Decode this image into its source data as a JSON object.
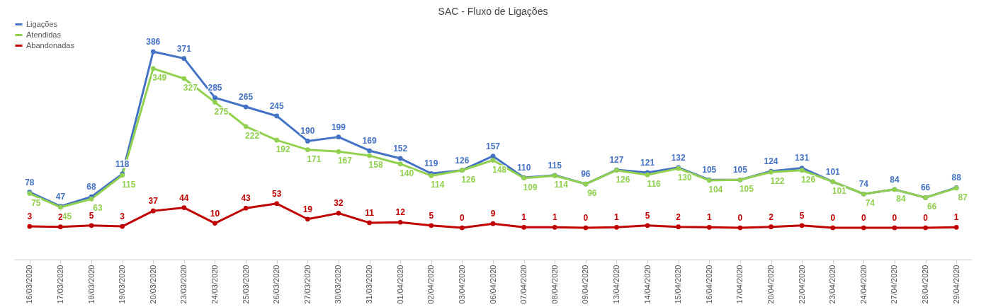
{
  "chart_data": {
    "type": "line",
    "title": "SAC - Fluxo de Ligações",
    "categories": [
      "16/03/2020",
      "17/03/2020",
      "18/03/2020",
      "19/03/2020",
      "20/03/2020",
      "23/03/2020",
      "24/03/2020",
      "25/03/2020",
      "26/03/2020",
      "27/03/2020",
      "30/03/2020",
      "31/03/2020",
      "01/04/2020",
      "02/04/2020",
      "03/04/2020",
      "06/04/2020",
      "07/04/2020",
      "08/04/2020",
      "09/04/2020",
      "13/04/2020",
      "14/04/2020",
      "15/04/2020",
      "16/04/2020",
      "17/04/2020",
      "20/04/2020",
      "22/04/2020",
      "23/04/2020",
      "24/04/2020",
      "27/04/2020",
      "28/04/2020",
      "29/04/2020"
    ],
    "series": [
      {
        "name": "Ligações",
        "color": "#4472c4",
        "values": [
          78,
          47,
          68,
          118,
          386,
          371,
          285,
          265,
          245,
          190,
          199,
          169,
          152,
          119,
          126,
          157,
          110,
          115,
          96,
          127,
          121,
          132,
          105,
          105,
          124,
          131,
          101,
          74,
          84,
          66,
          88
        ]
      },
      {
        "name": "Atendidas",
        "color": "#92d050",
        "values": [
          75,
          45,
          63,
          115,
          349,
          327,
          275,
          222,
          192,
          171,
          167,
          158,
          140,
          114,
          126,
          148,
          109,
          114,
          96,
          126,
          116,
          130,
          104,
          105,
          122,
          126,
          101,
          74,
          84,
          66,
          87
        ]
      },
      {
        "name": "Abandonadas",
        "color": "#c00000",
        "values": [
          3,
          2,
          5,
          3,
          37,
          44,
          10,
          43,
          53,
          19,
          32,
          11,
          12,
          5,
          0,
          9,
          1,
          1,
          0,
          1,
          5,
          2,
          1,
          0,
          2,
          5,
          0,
          0,
          0,
          0,
          1
        ]
      }
    ],
    "data_labels": true,
    "legend": "top left",
    "marker": "circle",
    "line_style": "solid",
    "grid": false,
    "tick_labels": "x"
  }
}
